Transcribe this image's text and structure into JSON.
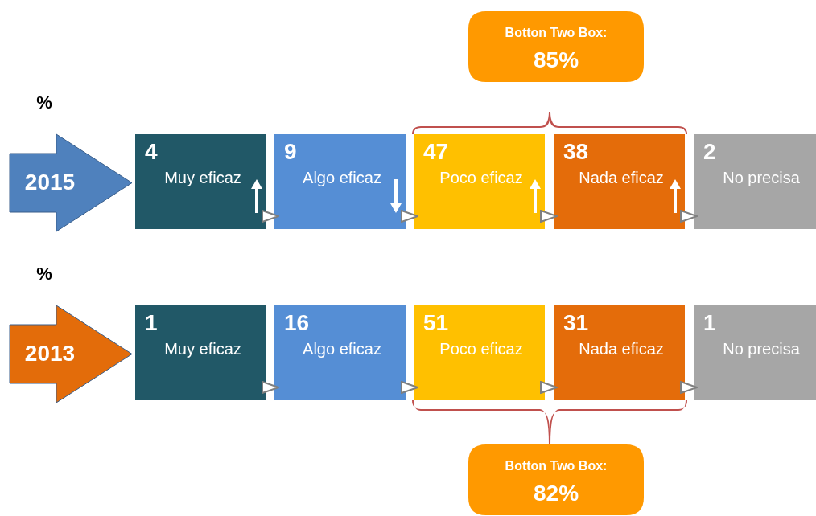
{
  "chart_data": [
    {
      "type": "other",
      "title": "2015",
      "ylabel": "%",
      "categories": [
        "Muy eficaz",
        "Algo eficaz",
        "Poco eficaz",
        "Nada eficaz",
        "No precisa"
      ],
      "values": [
        4,
        9,
        47,
        38,
        2
      ],
      "data_labels": true,
      "colors": [
        "#215867",
        "#558ed5",
        "#ffc000",
        "#e46c0a",
        "#a6a6a6"
      ],
      "annotations": [
        "Botton Two Box:",
        "85%"
      ]
    },
    {
      "type": "other",
      "title": "2013",
      "ylabel": "%",
      "categories": [
        "Muy eficaz",
        "Algo eficaz",
        "Poco eficaz",
        "Nada eficaz",
        "No precisa"
      ],
      "values": [
        1,
        16,
        51,
        31,
        1
      ],
      "data_labels": true,
      "colors": [
        "#215867",
        "#558ed5",
        "#ffc000",
        "#e46c0a",
        "#a6a6a6"
      ],
      "annotations": [
        "Botton Two Box:",
        "82%"
      ]
    }
  ]
}
